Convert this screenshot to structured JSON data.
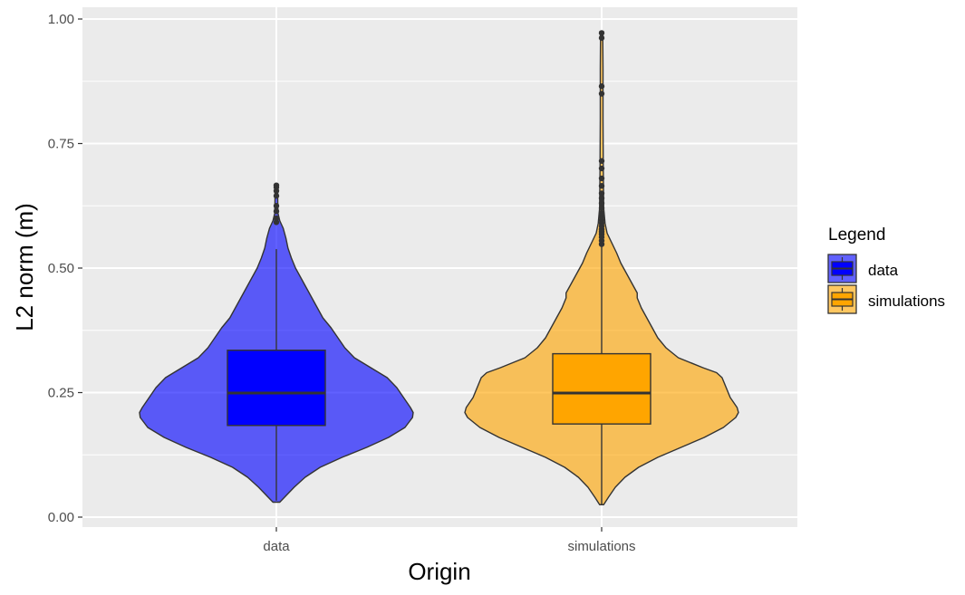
{
  "chart_data": {
    "type": "violin",
    "title": "",
    "xlabel": "Origin",
    "ylabel": "L2 norm (m)",
    "ylim": [
      0,
      1
    ],
    "yticks": [
      "0.00",
      "0.25",
      "0.50",
      "0.75",
      "1.00"
    ],
    "ytick_values": [
      0,
      0.25,
      0.5,
      0.75,
      1.0
    ],
    "categories": [
      "data",
      "simulations"
    ],
    "grid": true,
    "background_color": "#ebebeb",
    "legend": {
      "title": "Legend",
      "placement": "right",
      "entries": [
        "data",
        "simulations"
      ]
    },
    "series": [
      {
        "name": "data",
        "fill_color": "#0000ff",
        "violin_alpha": 0.62,
        "density": [
          [
            0.03,
            0.025
          ],
          [
            0.04,
            0.06
          ],
          [
            0.06,
            0.13
          ],
          [
            0.08,
            0.21
          ],
          [
            0.1,
            0.32
          ],
          [
            0.12,
            0.48
          ],
          [
            0.14,
            0.66
          ],
          [
            0.16,
            0.82
          ],
          [
            0.18,
            0.94
          ],
          [
            0.2,
            0.995
          ],
          [
            0.21,
            1.0
          ],
          [
            0.22,
            0.98
          ],
          [
            0.24,
            0.93
          ],
          [
            0.26,
            0.88
          ],
          [
            0.28,
            0.81
          ],
          [
            0.3,
            0.69
          ],
          [
            0.32,
            0.57
          ],
          [
            0.34,
            0.5
          ],
          [
            0.36,
            0.45
          ],
          [
            0.38,
            0.4
          ],
          [
            0.4,
            0.34
          ],
          [
            0.42,
            0.3
          ],
          [
            0.44,
            0.26
          ],
          [
            0.46,
            0.22
          ],
          [
            0.48,
            0.18
          ],
          [
            0.5,
            0.14
          ],
          [
            0.52,
            0.11
          ],
          [
            0.54,
            0.085
          ],
          [
            0.56,
            0.07
          ],
          [
            0.58,
            0.05
          ],
          [
            0.595,
            0.025
          ],
          [
            0.61,
            0.012
          ],
          [
            0.64,
            0.01
          ],
          [
            0.666,
            0.01
          ]
        ],
        "box": {
          "lower_whisker": 0.033,
          "q1": 0.184,
          "median": 0.249,
          "q3": 0.335,
          "upper_whisker": 0.538
        },
        "outliers": [
          0.592,
          0.6,
          0.614,
          0.625,
          0.645,
          0.655,
          0.662,
          0.666
        ]
      },
      {
        "name": "simulations",
        "fill_color": "#ffa500",
        "violin_alpha": 0.62,
        "density": [
          [
            0.025,
            0.015
          ],
          [
            0.04,
            0.05
          ],
          [
            0.06,
            0.1
          ],
          [
            0.08,
            0.17
          ],
          [
            0.1,
            0.27
          ],
          [
            0.12,
            0.41
          ],
          [
            0.14,
            0.58
          ],
          [
            0.16,
            0.75
          ],
          [
            0.18,
            0.89
          ],
          [
            0.2,
            0.98
          ],
          [
            0.21,
            1.0
          ],
          [
            0.22,
            0.99
          ],
          [
            0.24,
            0.94
          ],
          [
            0.26,
            0.91
          ],
          [
            0.28,
            0.88
          ],
          [
            0.29,
            0.84
          ],
          [
            0.3,
            0.74
          ],
          [
            0.32,
            0.56
          ],
          [
            0.34,
            0.47
          ],
          [
            0.36,
            0.41
          ],
          [
            0.38,
            0.37
          ],
          [
            0.4,
            0.33
          ],
          [
            0.42,
            0.29
          ],
          [
            0.44,
            0.26
          ],
          [
            0.45,
            0.26
          ],
          [
            0.47,
            0.22
          ],
          [
            0.49,
            0.18
          ],
          [
            0.51,
            0.14
          ],
          [
            0.53,
            0.11
          ],
          [
            0.55,
            0.075
          ],
          [
            0.57,
            0.04
          ],
          [
            0.59,
            0.025
          ],
          [
            0.62,
            0.015
          ],
          [
            0.7,
            0.012
          ],
          [
            0.8,
            0.01
          ],
          [
            0.9,
            0.01
          ],
          [
            0.972,
            0.008
          ]
        ],
        "box": {
          "lower_whisker": 0.025,
          "q1": 0.187,
          "median": 0.249,
          "q3": 0.328,
          "upper_whisker": 0.545
        },
        "outliers": [
          0.548,
          0.555,
          0.562,
          0.568,
          0.573,
          0.578,
          0.584,
          0.59,
          0.596,
          0.603,
          0.61,
          0.62,
          0.63,
          0.64,
          0.65,
          0.665,
          0.68,
          0.7,
          0.715,
          0.85,
          0.865,
          0.962,
          0.972
        ]
      }
    ]
  }
}
